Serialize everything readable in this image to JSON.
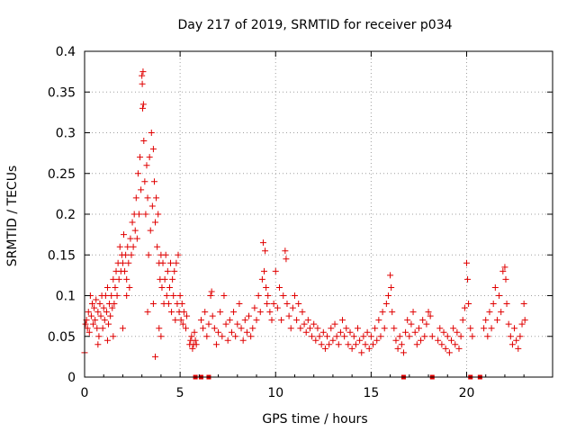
{
  "chart_data": {
    "type": "scatter",
    "title": "Day 217 of 2019, SRMTID for receiver p034",
    "xlabel": "GPS time / hours",
    "ylabel": "SRMTID / TECUs",
    "xlim": [
      0,
      24.5
    ],
    "ylim": [
      0,
      0.4
    ],
    "x_ticks": [
      "0",
      "5",
      "10",
      "15",
      "20"
    ],
    "x_tick_values": [
      0,
      5,
      10,
      15,
      20
    ],
    "y_ticks": [
      "0",
      "0.05",
      "0.1",
      "0.15",
      "0.2",
      "0.25",
      "0.3",
      "0.35",
      "0.4"
    ],
    "y_tick_values": [
      0,
      0.05,
      0.1,
      0.15,
      0.2,
      0.25,
      0.3,
      0.35,
      0.4
    ],
    "grid": true,
    "marker": "plus",
    "series_color": "#e00000",
    "points": [
      [
        0.0,
        0.03
      ],
      [
        0.05,
        0.065
      ],
      [
        0.1,
        0.07
      ],
      [
        0.15,
        0.06
      ],
      [
        0.2,
        0.08
      ],
      [
        0.25,
        0.055
      ],
      [
        0.3,
        0.1
      ],
      [
        0.35,
        0.075
      ],
      [
        0.4,
        0.09
      ],
      [
        0.45,
        0.065
      ],
      [
        0.5,
        0.085
      ],
      [
        0.55,
        0.07
      ],
      [
        0.6,
        0.095
      ],
      [
        0.65,
        0.06
      ],
      [
        0.7,
        0.08
      ],
      [
        0.75,
        0.05
      ],
      [
        0.8,
        0.09
      ],
      [
        0.85,
        0.075
      ],
      [
        0.9,
        0.1
      ],
      [
        0.95,
        0.06
      ],
      [
        1.0,
        0.085
      ],
      [
        1.05,
        0.07
      ],
      [
        1.1,
        0.1
      ],
      [
        1.15,
        0.08
      ],
      [
        1.2,
        0.11
      ],
      [
        1.25,
        0.065
      ],
      [
        1.3,
        0.09
      ],
      [
        1.35,
        0.075
      ],
      [
        1.4,
        0.1
      ],
      [
        1.45,
        0.085
      ],
      [
        1.5,
        0.12
      ],
      [
        1.55,
        0.09
      ],
      [
        1.6,
        0.11
      ],
      [
        1.65,
        0.13
      ],
      [
        1.7,
        0.1
      ],
      [
        1.75,
        0.14
      ],
      [
        1.8,
        0.12
      ],
      [
        1.85,
        0.16
      ],
      [
        1.9,
        0.13
      ],
      [
        1.95,
        0.15
      ],
      [
        2.0,
        0.14
      ],
      [
        2.05,
        0.175
      ],
      [
        2.1,
        0.13
      ],
      [
        2.15,
        0.15
      ],
      [
        2.2,
        0.12
      ],
      [
        2.25,
        0.16
      ],
      [
        2.3,
        0.14
      ],
      [
        2.35,
        0.11
      ],
      [
        2.4,
        0.17
      ],
      [
        2.45,
        0.15
      ],
      [
        2.5,
        0.19
      ],
      [
        2.55,
        0.16
      ],
      [
        2.6,
        0.2
      ],
      [
        2.65,
        0.18
      ],
      [
        2.7,
        0.22
      ],
      [
        2.75,
        0.17
      ],
      [
        2.8,
        0.25
      ],
      [
        2.85,
        0.2
      ],
      [
        2.9,
        0.27
      ],
      [
        2.95,
        0.23
      ],
      [
        3.0,
        0.37
      ],
      [
        3.02,
        0.36
      ],
      [
        3.04,
        0.33
      ],
      [
        3.06,
        0.375
      ],
      [
        3.08,
        0.335
      ],
      [
        3.1,
        0.29
      ],
      [
        3.15,
        0.24
      ],
      [
        3.2,
        0.2
      ],
      [
        3.25,
        0.26
      ],
      [
        3.3,
        0.22
      ],
      [
        3.35,
        0.15
      ],
      [
        3.4,
        0.27
      ],
      [
        3.45,
        0.18
      ],
      [
        3.5,
        0.3
      ],
      [
        3.55,
        0.21
      ],
      [
        3.6,
        0.28
      ],
      [
        3.65,
        0.24
      ],
      [
        3.7,
        0.19
      ],
      [
        3.75,
        0.22
      ],
      [
        3.8,
        0.16
      ],
      [
        3.85,
        0.2
      ],
      [
        3.9,
        0.14
      ],
      [
        3.95,
        0.12
      ],
      [
        4.0,
        0.15
      ],
      [
        4.05,
        0.11
      ],
      [
        4.1,
        0.14
      ],
      [
        4.15,
        0.09
      ],
      [
        4.2,
        0.12
      ],
      [
        4.25,
        0.15
      ],
      [
        4.3,
        0.1
      ],
      [
        4.35,
        0.13
      ],
      [
        4.4,
        0.09
      ],
      [
        4.45,
        0.11
      ],
      [
        4.5,
        0.14
      ],
      [
        4.55,
        0.08
      ],
      [
        4.6,
        0.12
      ],
      [
        4.65,
        0.1
      ],
      [
        4.7,
        0.13
      ],
      [
        4.75,
        0.07
      ],
      [
        4.8,
        0.14
      ],
      [
        4.85,
        0.09
      ],
      [
        4.9,
        0.15
      ],
      [
        4.95,
        0.08
      ],
      [
        5.0,
        0.1
      ],
      [
        5.05,
        0.07
      ],
      [
        5.1,
        0.09
      ],
      [
        5.15,
        0.065
      ],
      [
        5.2,
        0.08
      ],
      [
        5.3,
        0.06
      ],
      [
        5.35,
        0.075
      ],
      [
        3.7,
        0.025
      ],
      [
        3.9,
        0.06
      ],
      [
        4.0,
        0.05
      ],
      [
        3.6,
        0.09
      ],
      [
        3.3,
        0.08
      ],
      [
        2.2,
        0.1
      ],
      [
        2.0,
        0.06
      ],
      [
        1.5,
        0.05
      ],
      [
        1.2,
        0.045
      ],
      [
        0.7,
        0.04
      ],
      [
        5.5,
        0.04
      ],
      [
        5.55,
        0.045
      ],
      [
        5.6,
        0.05
      ],
      [
        5.65,
        0.035
      ],
      [
        5.7,
        0.04
      ],
      [
        5.75,
        0.055
      ],
      [
        5.8,
        0.045
      ],
      [
        5.85,
        0.04
      ],
      [
        6.1,
        0.07
      ],
      [
        6.2,
        0.06
      ],
      [
        6.3,
        0.08
      ],
      [
        6.4,
        0.05
      ],
      [
        6.5,
        0.065
      ],
      [
        6.6,
        0.1
      ],
      [
        6.65,
        0.105
      ],
      [
        6.7,
        0.075
      ],
      [
        6.8,
        0.06
      ],
      [
        6.9,
        0.04
      ],
      [
        7.0,
        0.055
      ],
      [
        7.1,
        0.08
      ],
      [
        7.2,
        0.05
      ],
      [
        7.3,
        0.1
      ],
      [
        7.4,
        0.065
      ],
      [
        7.5,
        0.045
      ],
      [
        7.6,
        0.07
      ],
      [
        7.7,
        0.055
      ],
      [
        7.8,
        0.08
      ],
      [
        7.9,
        0.05
      ],
      [
        8.0,
        0.065
      ],
      [
        8.1,
        0.09
      ],
      [
        8.2,
        0.06
      ],
      [
        8.3,
        0.045
      ],
      [
        8.4,
        0.07
      ],
      [
        8.5,
        0.055
      ],
      [
        8.6,
        0.075
      ],
      [
        8.7,
        0.05
      ],
      [
        8.8,
        0.06
      ],
      [
        8.9,
        0.085
      ],
      [
        9.0,
        0.07
      ],
      [
        9.1,
        0.1
      ],
      [
        9.2,
        0.08
      ],
      [
        9.3,
        0.12
      ],
      [
        9.35,
        0.165
      ],
      [
        9.4,
        0.13
      ],
      [
        9.45,
        0.155
      ],
      [
        9.5,
        0.11
      ],
      [
        9.55,
        0.09
      ],
      [
        9.6,
        0.1
      ],
      [
        9.7,
        0.08
      ],
      [
        9.8,
        0.07
      ],
      [
        9.9,
        0.09
      ],
      [
        10.0,
        0.13
      ],
      [
        10.1,
        0.085
      ],
      [
        10.2,
        0.11
      ],
      [
        10.3,
        0.07
      ],
      [
        10.4,
        0.1
      ],
      [
        10.5,
        0.155
      ],
      [
        10.55,
        0.145
      ],
      [
        10.6,
        0.09
      ],
      [
        10.7,
        0.075
      ],
      [
        10.8,
        0.06
      ],
      [
        10.9,
        0.085
      ],
      [
        11.0,
        0.1
      ],
      [
        11.1,
        0.07
      ],
      [
        11.2,
        0.09
      ],
      [
        11.3,
        0.06
      ],
      [
        11.4,
        0.08
      ],
      [
        11.5,
        0.065
      ],
      [
        11.6,
        0.055
      ],
      [
        11.7,
        0.07
      ],
      [
        11.8,
        0.06
      ],
      [
        11.9,
        0.05
      ],
      [
        12.0,
        0.065
      ],
      [
        12.1,
        0.045
      ],
      [
        12.2,
        0.06
      ],
      [
        12.3,
        0.05
      ],
      [
        12.4,
        0.04
      ],
      [
        12.5,
        0.055
      ],
      [
        12.6,
        0.035
      ],
      [
        12.7,
        0.05
      ],
      [
        12.8,
        0.04
      ],
      [
        12.9,
        0.06
      ],
      [
        13.0,
        0.045
      ],
      [
        13.1,
        0.065
      ],
      [
        13.2,
        0.05
      ],
      [
        13.3,
        0.04
      ],
      [
        13.4,
        0.055
      ],
      [
        13.5,
        0.07
      ],
      [
        13.6,
        0.05
      ],
      [
        13.7,
        0.06
      ],
      [
        13.8,
        0.04
      ],
      [
        13.9,
        0.055
      ],
      [
        14.0,
        0.035
      ],
      [
        14.1,
        0.05
      ],
      [
        14.2,
        0.04
      ],
      [
        14.3,
        0.06
      ],
      [
        14.4,
        0.045
      ],
      [
        14.5,
        0.03
      ],
      [
        14.6,
        0.05
      ],
      [
        14.7,
        0.04
      ],
      [
        14.8,
        0.055
      ],
      [
        14.9,
        0.035
      ],
      [
        15.0,
        0.05
      ],
      [
        15.1,
        0.04
      ],
      [
        15.2,
        0.06
      ],
      [
        15.3,
        0.045
      ],
      [
        15.4,
        0.07
      ],
      [
        15.5,
        0.05
      ],
      [
        15.6,
        0.08
      ],
      [
        15.7,
        0.06
      ],
      [
        15.8,
        0.09
      ],
      [
        15.9,
        0.1
      ],
      [
        16.0,
        0.125
      ],
      [
        16.05,
        0.11
      ],
      [
        16.1,
        0.08
      ],
      [
        16.2,
        0.06
      ],
      [
        16.3,
        0.045
      ],
      [
        16.4,
        0.035
      ],
      [
        16.5,
        0.05
      ],
      [
        16.6,
        0.04
      ],
      [
        16.7,
        0.03
      ],
      [
        16.8,
        0.055
      ],
      [
        16.9,
        0.07
      ],
      [
        17.0,
        0.05
      ],
      [
        17.1,
        0.065
      ],
      [
        17.2,
        0.08
      ],
      [
        17.3,
        0.055
      ],
      [
        17.4,
        0.04
      ],
      [
        17.5,
        0.06
      ],
      [
        17.6,
        0.045
      ],
      [
        17.7,
        0.07
      ],
      [
        17.8,
        0.05
      ],
      [
        17.9,
        0.065
      ],
      [
        18.0,
        0.08
      ],
      [
        18.1,
        0.075
      ],
      [
        18.2,
        0.05
      ],
      [
        18.5,
        0.045
      ],
      [
        18.6,
        0.06
      ],
      [
        18.7,
        0.04
      ],
      [
        18.8,
        0.055
      ],
      [
        18.9,
        0.035
      ],
      [
        19.0,
        0.05
      ],
      [
        19.1,
        0.03
      ],
      [
        19.2,
        0.045
      ],
      [
        19.3,
        0.06
      ],
      [
        19.4,
        0.04
      ],
      [
        19.5,
        0.055
      ],
      [
        19.6,
        0.035
      ],
      [
        19.7,
        0.05
      ],
      [
        19.8,
        0.07
      ],
      [
        19.9,
        0.085
      ],
      [
        20.0,
        0.14
      ],
      [
        20.05,
        0.12
      ],
      [
        20.1,
        0.09
      ],
      [
        20.2,
        0.06
      ],
      [
        20.3,
        0.05
      ],
      [
        20.9,
        0.06
      ],
      [
        21.0,
        0.07
      ],
      [
        21.1,
        0.05
      ],
      [
        21.2,
        0.08
      ],
      [
        21.3,
        0.06
      ],
      [
        21.4,
        0.09
      ],
      [
        21.5,
        0.11
      ],
      [
        21.6,
        0.07
      ],
      [
        21.7,
        0.1
      ],
      [
        21.8,
        0.08
      ],
      [
        21.9,
        0.13
      ],
      [
        22.0,
        0.135
      ],
      [
        22.05,
        0.12
      ],
      [
        22.1,
        0.09
      ],
      [
        22.2,
        0.065
      ],
      [
        22.3,
        0.05
      ],
      [
        22.4,
        0.04
      ],
      [
        22.5,
        0.06
      ],
      [
        22.6,
        0.045
      ],
      [
        22.7,
        0.035
      ],
      [
        22.8,
        0.05
      ],
      [
        22.9,
        0.065
      ],
      [
        23.0,
        0.09
      ],
      [
        23.05,
        0.07
      ]
    ],
    "baseline_markers_x": [
      5.8,
      6.1,
      6.5,
      16.7,
      18.2,
      20.2,
      20.7
    ]
  }
}
